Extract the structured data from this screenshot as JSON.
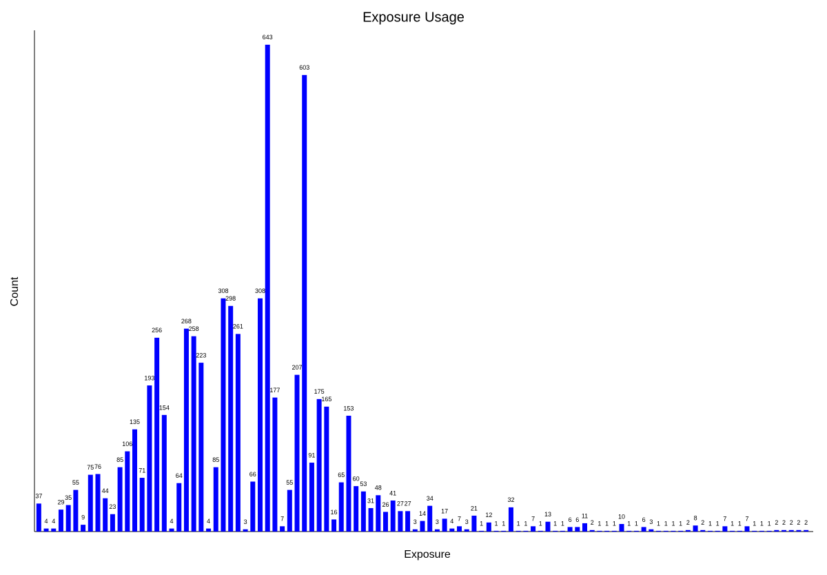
{
  "chart_data": {
    "type": "bar",
    "title": "Exposure Usage",
    "x_label": "Exposure",
    "y_label": "Count",
    "categories": [
      null,
      null,
      null,
      null,
      null,
      null,
      null,
      null,
      null,
      null,
      null,
      null,
      null,
      null,
      null,
      null,
      null,
      null,
      null,
      null,
      null,
      null,
      null,
      null,
      null,
      null,
      null,
      null,
      null,
      null,
      null,
      null,
      null,
      null,
      null,
      null,
      null,
      null,
      null,
      null,
      null,
      null,
      null,
      null,
      null,
      null,
      null,
      null,
      null,
      null,
      null,
      null,
      null,
      null,
      null,
      null,
      null,
      null,
      null,
      null,
      null,
      null,
      null,
      null,
      null,
      null,
      null,
      null,
      null,
      null,
      null,
      null,
      null,
      null,
      null,
      null,
      null,
      null,
      null,
      null,
      null,
      null,
      null,
      null,
      null,
      null,
      null,
      null,
      null,
      null,
      null,
      null,
      null,
      null,
      null,
      null,
      null,
      null,
      null,
      null,
      null,
      null,
      null,
      null,
      null
    ],
    "values": [
      37,
      4,
      4,
      29,
      35,
      55,
      9,
      75,
      76,
      44,
      23,
      85,
      106,
      135,
      71,
      193,
      256,
      154,
      4,
      64,
      268,
      258,
      223,
      4,
      85,
      308,
      298,
      261,
      3,
      66,
      308,
      643,
      177,
      7,
      55,
      207,
      603,
      91,
      175,
      165,
      16,
      65,
      153,
      60,
      53,
      31,
      48,
      26,
      41,
      27,
      27,
      3,
      14,
      34,
      3,
      17,
      4,
      7,
      3,
      21,
      1,
      12,
      1,
      1,
      32,
      1,
      1,
      7,
      1,
      13,
      1,
      1,
      6,
      6,
      11,
      2,
      1,
      1,
      1,
      10,
      1,
      1,
      6,
      3,
      1,
      1,
      1,
      1,
      2,
      8,
      2,
      1,
      1,
      7,
      1,
      1,
      7,
      1,
      1,
      1,
      2,
      2,
      2,
      2,
      2
    ],
    "color": "#0000ff",
    "ylim": [
      0,
      662
    ]
  }
}
